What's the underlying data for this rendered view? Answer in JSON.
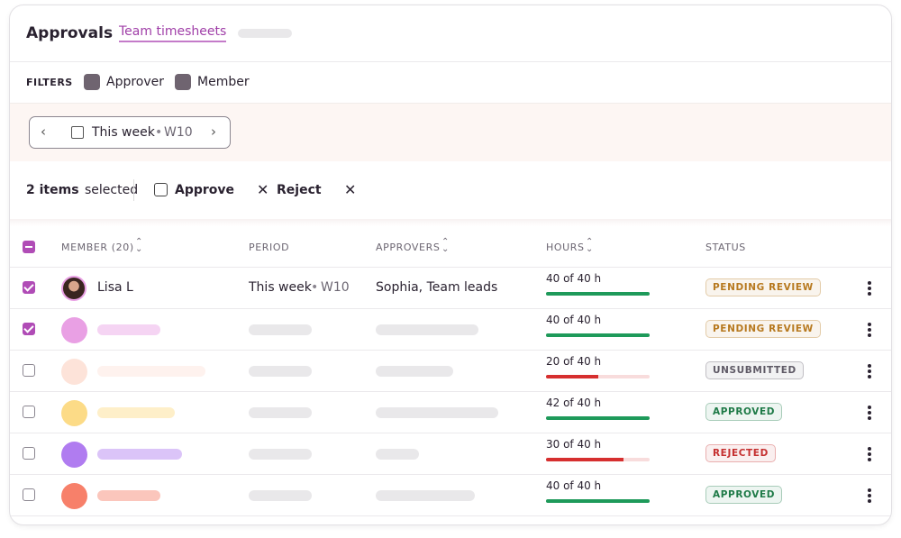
{
  "header": {
    "title": "Approvals",
    "tabs": [
      "Team timesheets"
    ]
  },
  "filters": {
    "label": "FILTERS",
    "items": [
      "Approver",
      "Member"
    ]
  },
  "date_range": {
    "label": "This week",
    "separator": "•",
    "week": "W10"
  },
  "selection": {
    "count": "2 items",
    "suffix": "selected",
    "actions": [
      "Approve",
      "Reject"
    ]
  },
  "table": {
    "columns": [
      "MEMBER (20)",
      "PERIOD",
      "APPROVERS",
      "HOURS",
      "STATUS"
    ],
    "rows": [
      {
        "selected": true,
        "member": "Lisa L",
        "period": "This week",
        "separator": "•",
        "week": "W10",
        "approvers": "Sophia, Team leads",
        "hours": {
          "label": "40 of 40 h",
          "logged": 40,
          "target": 40
        },
        "bar_color": "#1e9a5a",
        "status": "PENDING REVIEW",
        "status_color": "#b7791f"
      },
      {
        "selected": true,
        "hours": {
          "label": "40 of 40 h",
          "logged": 40,
          "target": 40
        },
        "bar_color": "#1e9a5a",
        "status": "PENDING REVIEW",
        "status_color": "#b7791f"
      },
      {
        "selected": false,
        "hours": {
          "label": "20 of 40 h",
          "logged": 20,
          "target": 40
        },
        "bar_color": "#d62f2f",
        "status": "UNSUBMITTED",
        "status_color": "#5f5a66"
      },
      {
        "selected": false,
        "hours": {
          "label": "42 of 40 h",
          "logged": 42,
          "target": 40
        },
        "bar_color": "#1e9a5a",
        "status": "APPROVED",
        "status_color": "#1e7a47"
      },
      {
        "selected": false,
        "hours": {
          "label": "30 of 40 h",
          "logged": 30,
          "target": 40
        },
        "bar_color": "#d62f2f",
        "status": "REJECTED",
        "status_color": "#c53030"
      },
      {
        "selected": false,
        "hours": {
          "label": "40 of 40 h",
          "logged": 40,
          "target": 40
        },
        "bar_color": "#1e9a5a",
        "status": "APPROVED",
        "status_color": "#1e7a47"
      }
    ]
  }
}
